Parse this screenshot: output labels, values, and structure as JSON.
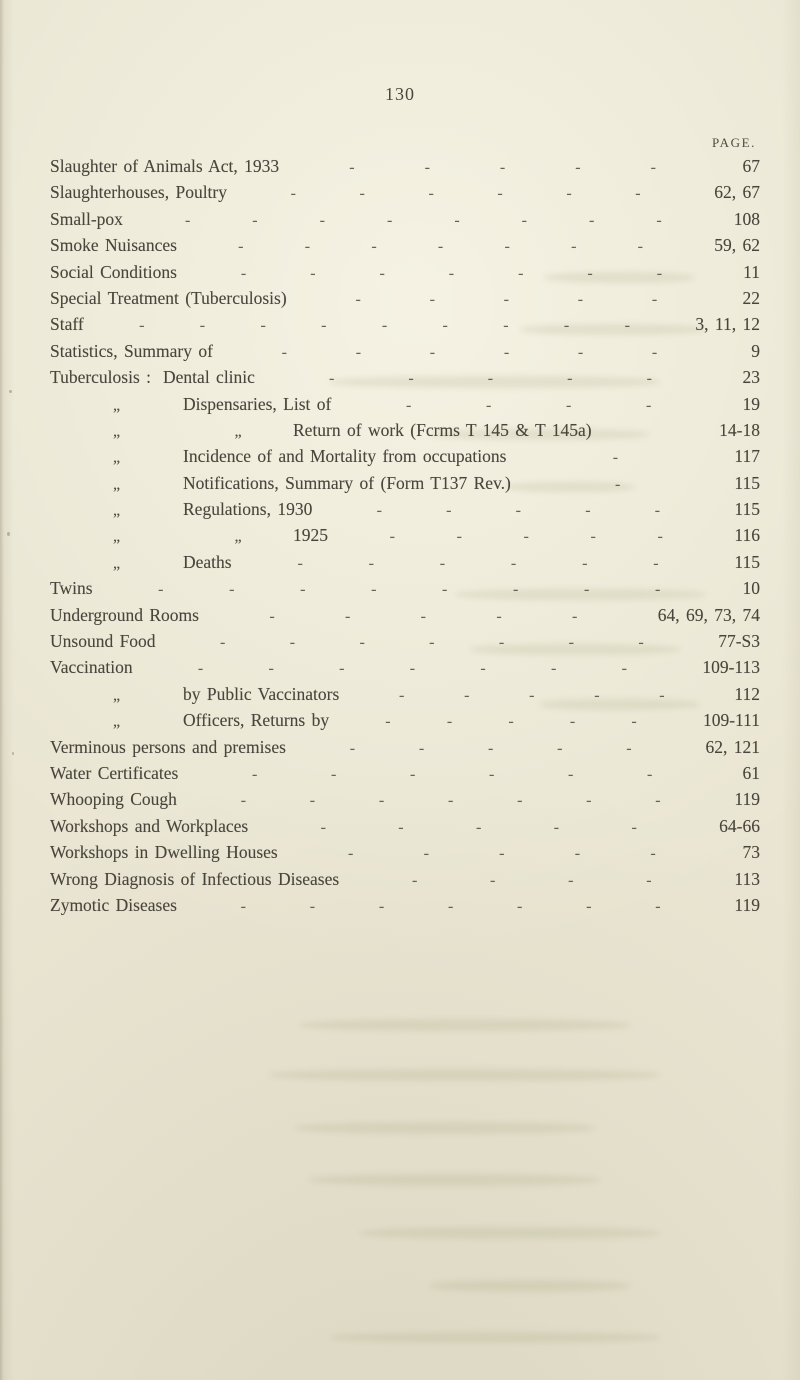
{
  "page": {
    "folio": "130",
    "column_header": "PAGE.",
    "paper_color": "#e9e5d2",
    "ink_color": "#49453c",
    "ditto_mark": "„",
    "dash_glyph": "-"
  },
  "entries": [
    {
      "main": "Slaughter of Animals Act, 1933",
      "dashes": 5,
      "page": "67"
    },
    {
      "main": "Slaughterhouses, Poultry",
      "dashes": 6,
      "page": "62, 67"
    },
    {
      "main": "Small-pox",
      "dashes": 8,
      "page": "108"
    },
    {
      "main": "Smoke Nuisances",
      "dashes": 7,
      "page": "59, 62"
    },
    {
      "main": "Social Conditions",
      "dashes": 7,
      "page": "11"
    },
    {
      "main": "Special Treatment (Tuberculosis)",
      "dashes": 5,
      "page": "22"
    },
    {
      "main": "Staff",
      "dashes": 9,
      "page": "3, 11, 12"
    },
    {
      "main": "Statistics, Summary of",
      "dashes": 6,
      "page": "9"
    },
    {
      "main": "Tuberculosis :",
      "sub": "Dental clinic",
      "dashes": 5,
      "page": "23"
    },
    {
      "ditto1": true,
      "sub": "Dispensaries, List of",
      "dashes": 4,
      "page": "19"
    },
    {
      "ditto1": true,
      "ditto2": true,
      "sub2": "Return of work (Fcrms T 145 & T 145a)",
      "dashes": 0,
      "page": "14-18"
    },
    {
      "ditto1": true,
      "sub": "Incidence of and Mortality from occupations",
      "dashes": 1,
      "page": "117"
    },
    {
      "ditto1": true,
      "sub": "Notifications, Summary of (Form T137 Rev.)",
      "dashes": 1,
      "page": "115"
    },
    {
      "ditto1": true,
      "sub": "Regulations, 1930",
      "dashes": 5,
      "page": "115"
    },
    {
      "ditto1": true,
      "ditto2": true,
      "sub2": "1925",
      "dashes": 5,
      "page": "116"
    },
    {
      "ditto1": true,
      "sub": "Deaths",
      "dashes": 6,
      "page": "115"
    },
    {
      "main": "Twins",
      "dashes": 8,
      "page": "10"
    },
    {
      "main": "Underground Rooms",
      "dashes": 5,
      "page": "64, 69, 73, 74"
    },
    {
      "main": "Unsound Food",
      "dashes": 7,
      "page": "77-S3"
    },
    {
      "main": "Vaccination",
      "dashes": 7,
      "page": "109-113"
    },
    {
      "ditto1": true,
      "sub": "by Public Vaccinators",
      "dashes": 5,
      "page": "112"
    },
    {
      "ditto1": true,
      "sub": "Officers, Returns by",
      "dashes": 5,
      "page": "109-111"
    },
    {
      "main": "Verminous persons and premises",
      "dashes": 5,
      "page": "62, 121"
    },
    {
      "main": "Water Certificates",
      "dashes": 6,
      "page": "61"
    },
    {
      "main": "Whooping Cough",
      "dashes": 7,
      "page": "119"
    },
    {
      "main": "Workshops and Workplaces",
      "dashes": 5,
      "page": "64-66"
    },
    {
      "main": "Workshops in Dwelling Houses",
      "dashes": 5,
      "page": "73"
    },
    {
      "main": "Wrong Diagnosis of Infectious Diseases",
      "dashes": 4,
      "page": "113"
    },
    {
      "main": "Zymotic Diseases",
      "dashes": 7,
      "page": "119"
    }
  ]
}
